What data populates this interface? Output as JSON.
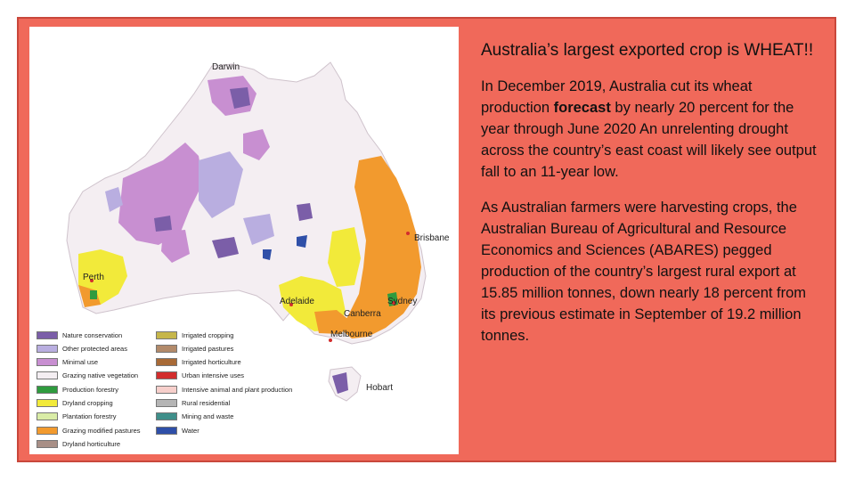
{
  "slide": {
    "heading": "Australia’s largest exported crop is WHEAT!!",
    "paragraph1": {
      "before": "In December 2019, Australia cut its wheat production ",
      "bold": "forecast",
      "after": " by nearly 20 percent for the year through June 2020 An unrelenting drought across the country’s east coast will likely see output fall to an 11-year low."
    },
    "paragraph2": "As Australian farmers were harvesting crops, the Australian Bureau of Agricultural and Resource Economics and Sciences (ABARES) pegged production of the country’s largest rural export at 15.85 million tonnes, down nearly 18 percent from its previous estimate in September of 19.2 million tonnes."
  },
  "map": {
    "cities": [
      "Darwin",
      "Brisbane",
      "Perth",
      "Adelaide",
      "Sydney",
      "Canberra",
      "Melbourne",
      "Hobart"
    ],
    "legend": [
      {
        "label": "Nature conservation",
        "color": "#7b5ea8"
      },
      {
        "label": "Other protected areas",
        "color": "#b9aee0"
      },
      {
        "label": "Minimal use",
        "color": "#c88fd1"
      },
      {
        "label": "Grazing native vegetation",
        "color": "#f4eef2"
      },
      {
        "label": "Production forestry",
        "color": "#2f9b3e"
      },
      {
        "label": "Dryland cropping",
        "color": "#f2ea3a"
      },
      {
        "label": "Plantation forestry",
        "color": "#d9eca6"
      },
      {
        "label": "Grazing modified pastures",
        "color": "#f29a2e"
      },
      {
        "label": "Dryland horticulture",
        "color": "#a88f86"
      },
      {
        "label": "Irrigated cropping",
        "color": "#c6b64a"
      },
      {
        "label": "Irrigated pastures",
        "color": "#b28a6a"
      },
      {
        "label": "Irrigated horticulture",
        "color": "#a86a36"
      },
      {
        "label": "Urban intensive uses",
        "color": "#d22d2d"
      },
      {
        "label": "Intensive animal and plant production",
        "color": "#f7cfcb"
      },
      {
        "label": "Rural residential",
        "color": "#b5b5b5"
      },
      {
        "label": "Mining and waste",
        "color": "#3f8f8a"
      },
      {
        "label": "Water",
        "color": "#2f4fa8"
      }
    ]
  }
}
